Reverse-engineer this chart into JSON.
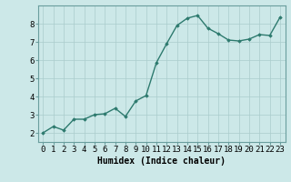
{
  "x": [
    0,
    1,
    2,
    3,
    4,
    5,
    6,
    7,
    8,
    9,
    10,
    11,
    12,
    13,
    14,
    15,
    16,
    17,
    18,
    19,
    20,
    21,
    22,
    23
  ],
  "y": [
    2.0,
    2.35,
    2.15,
    2.75,
    2.75,
    3.0,
    3.05,
    3.35,
    2.9,
    3.75,
    4.05,
    5.85,
    6.9,
    7.9,
    8.3,
    8.45,
    7.75,
    7.45,
    7.1,
    7.05,
    7.15,
    7.4,
    7.35,
    8.35
  ],
  "line_color": "#2d7a6e",
  "marker": "D",
  "marker_size": 1.8,
  "linewidth": 1.0,
  "background_color": "#cce8e8",
  "grid_color": "#aacccc",
  "xlabel": "Humidex (Indice chaleur)",
  "xlabel_fontsize": 7,
  "xlabel_fontname": "monospace",
  "ylabel_ticks": [
    2,
    3,
    4,
    5,
    6,
    7,
    8
  ],
  "xlim": [
    -0.5,
    23.5
  ],
  "ylim": [
    1.5,
    9.0
  ],
  "tick_fontsize": 6.5,
  "tick_fontname": "monospace",
  "spine_color": "#6a9e9e"
}
